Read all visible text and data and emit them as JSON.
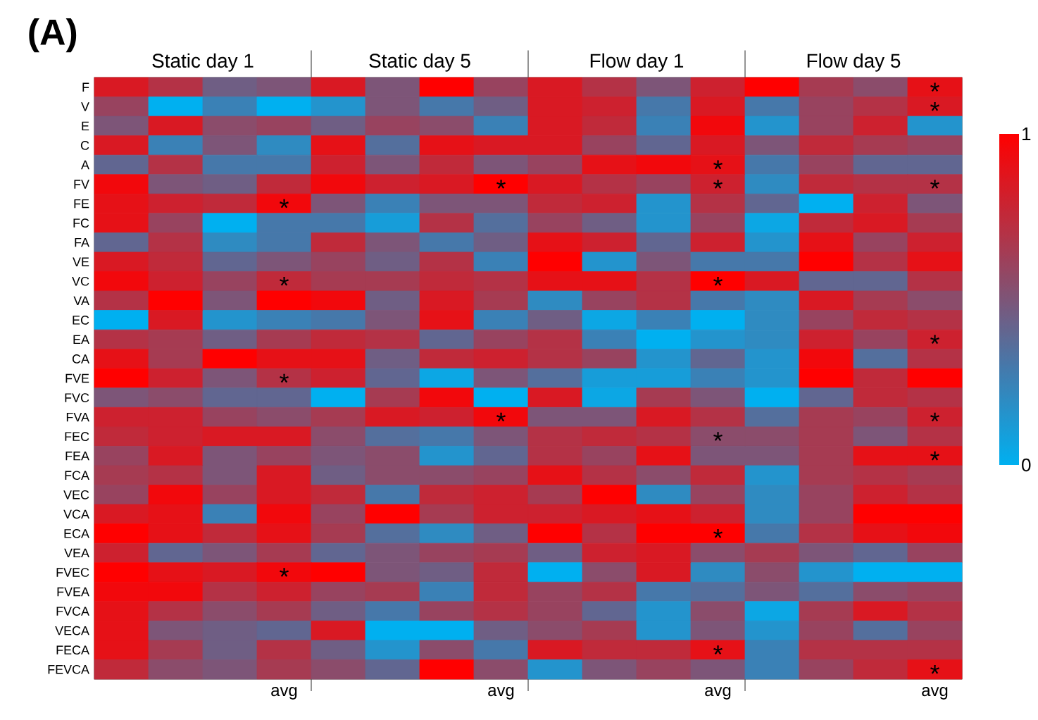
{
  "chart_data": {
    "type": "heatmap",
    "annotations": [
      "(A)",
      "Static day 1",
      "Static day 5",
      "Flow day 1",
      "Flow day 5"
    ],
    "categories": [
      null,
      null,
      null,
      "avg",
      null,
      null,
      null,
      "avg",
      null,
      null,
      null,
      "avg",
      null,
      null,
      null,
      "avg"
    ],
    "y_categories": [
      "F",
      "V",
      "E",
      "C",
      "A",
      "FV",
      "FE",
      "FC",
      "FA",
      "VE",
      "VC",
      "VA",
      "EC",
      "EA",
      "CA",
      "FVE",
      "FVC",
      "FVA",
      "FEC",
      "FEA",
      "FCA",
      "VEC",
      "VCA",
      "ECA",
      "VEA",
      "FVEC",
      "FVEA",
      "FVCA",
      "VECA",
      "FECA",
      "FEVCA"
    ],
    "cells": [
      [
        0.85,
        0.7,
        0.45,
        0.5,
        0.85,
        0.5,
        1.0,
        0.6,
        0.85,
        0.7,
        0.5,
        0.8,
        1.0,
        0.65,
        0.55,
        0.9
      ],
      [
        0.6,
        0.0,
        0.25,
        0.0,
        0.15,
        0.5,
        0.3,
        0.45,
        0.85,
        0.8,
        0.3,
        0.85,
        0.3,
        0.6,
        0.7,
        0.85
      ],
      [
        0.5,
        0.85,
        0.55,
        0.6,
        0.45,
        0.6,
        0.55,
        0.25,
        0.85,
        0.75,
        0.25,
        0.95,
        0.15,
        0.6,
        0.8,
        0.15
      ],
      [
        0.85,
        0.25,
        0.5,
        0.2,
        0.9,
        0.35,
        0.9,
        0.85,
        0.85,
        0.6,
        0.4,
        0.85,
        0.5,
        0.75,
        0.65,
        0.6
      ],
      [
        0.4,
        0.7,
        0.3,
        0.3,
        0.8,
        0.5,
        0.75,
        0.5,
        0.6,
        0.9,
        0.95,
        0.9,
        0.3,
        0.6,
        0.4,
        0.4
      ],
      [
        0.95,
        0.5,
        0.45,
        0.75,
        0.95,
        0.8,
        0.85,
        1.0,
        0.85,
        0.7,
        0.6,
        0.8,
        0.2,
        0.75,
        0.7,
        0.7
      ],
      [
        0.9,
        0.8,
        0.75,
        0.95,
        0.5,
        0.25,
        0.5,
        0.5,
        0.75,
        0.8,
        0.15,
        0.7,
        0.4,
        0.0,
        0.8,
        0.5
      ],
      [
        0.9,
        0.6,
        0.0,
        0.3,
        0.3,
        0.1,
        0.7,
        0.35,
        0.6,
        0.45,
        0.15,
        0.6,
        0.05,
        0.75,
        0.85,
        0.65
      ],
      [
        0.4,
        0.7,
        0.2,
        0.3,
        0.75,
        0.5,
        0.3,
        0.45,
        0.9,
        0.8,
        0.4,
        0.8,
        0.15,
        0.9,
        0.6,
        0.8
      ],
      [
        0.85,
        0.75,
        0.4,
        0.5,
        0.6,
        0.45,
        0.7,
        0.25,
        1.0,
        0.15,
        0.5,
        0.3,
        0.3,
        1.0,
        0.7,
        0.9
      ],
      [
        0.95,
        0.8,
        0.6,
        0.75,
        0.65,
        0.65,
        0.75,
        0.7,
        0.9,
        0.9,
        0.7,
        1.0,
        0.85,
        0.4,
        0.4,
        0.7
      ],
      [
        0.7,
        1.0,
        0.5,
        1.0,
        0.95,
        0.45,
        0.85,
        0.65,
        0.2,
        0.6,
        0.7,
        0.3,
        0.2,
        0.85,
        0.65,
        0.55
      ],
      [
        0.0,
        0.85,
        0.15,
        0.25,
        0.3,
        0.5,
        0.9,
        0.25,
        0.45,
        0.05,
        0.25,
        0.0,
        0.2,
        0.6,
        0.75,
        0.7
      ],
      [
        0.7,
        0.65,
        0.45,
        0.65,
        0.75,
        0.7,
        0.4,
        0.6,
        0.7,
        0.25,
        0.0,
        0.15,
        0.2,
        0.8,
        0.6,
        0.8
      ],
      [
        0.9,
        0.65,
        1.0,
        0.9,
        0.9,
        0.45,
        0.75,
        0.8,
        0.7,
        0.6,
        0.15,
        0.4,
        0.15,
        0.95,
        0.35,
        0.7
      ],
      [
        1.0,
        0.8,
        0.5,
        0.7,
        0.8,
        0.4,
        0.05,
        0.5,
        0.35,
        0.1,
        0.1,
        0.25,
        0.15,
        1.0,
        0.75,
        1.0
      ],
      [
        0.5,
        0.55,
        0.4,
        0.4,
        0.0,
        0.65,
        0.95,
        0.0,
        0.85,
        0.05,
        0.65,
        0.5,
        0.0,
        0.4,
        0.75,
        0.7
      ],
      [
        0.8,
        0.8,
        0.6,
        0.55,
        0.65,
        0.85,
        0.8,
        0.95,
        0.5,
        0.5,
        0.85,
        0.7,
        0.35,
        0.65,
        0.6,
        0.8
      ],
      [
        0.75,
        0.8,
        0.85,
        0.85,
        0.55,
        0.35,
        0.3,
        0.5,
        0.7,
        0.75,
        0.7,
        0.55,
        0.55,
        0.65,
        0.5,
        0.7
      ],
      [
        0.6,
        0.85,
        0.5,
        0.6,
        0.5,
        0.55,
        0.15,
        0.4,
        0.7,
        0.6,
        0.9,
        0.5,
        0.5,
        0.65,
        0.9,
        0.9
      ],
      [
        0.65,
        0.7,
        0.5,
        0.85,
        0.45,
        0.55,
        0.55,
        0.6,
        0.9,
        0.7,
        0.55,
        0.75,
        0.15,
        0.65,
        0.7,
        0.65
      ],
      [
        0.6,
        0.95,
        0.6,
        0.85,
        0.75,
        0.3,
        0.75,
        0.8,
        0.65,
        1.0,
        0.2,
        0.6,
        0.2,
        0.6,
        0.8,
        0.7
      ],
      [
        0.85,
        0.9,
        0.25,
        0.95,
        0.6,
        1.0,
        0.65,
        0.8,
        0.8,
        0.85,
        0.9,
        0.8,
        0.2,
        0.6,
        1.0,
        1.0
      ],
      [
        1.0,
        0.9,
        0.75,
        0.9,
        0.65,
        0.35,
        0.2,
        0.45,
        1.0,
        0.7,
        1.0,
        1.0,
        0.3,
        0.7,
        0.9,
        0.95
      ],
      [
        0.8,
        0.4,
        0.5,
        0.65,
        0.4,
        0.5,
        0.6,
        0.65,
        0.45,
        0.8,
        0.85,
        0.55,
        0.65,
        0.5,
        0.4,
        0.6
      ],
      [
        1.0,
        0.9,
        0.85,
        0.95,
        1.0,
        0.5,
        0.45,
        0.75,
        0.0,
        0.55,
        0.85,
        0.2,
        0.55,
        0.15,
        0.0,
        0.0
      ],
      [
        0.95,
        0.95,
        0.7,
        0.8,
        0.6,
        0.65,
        0.25,
        0.75,
        0.6,
        0.7,
        0.3,
        0.35,
        0.5,
        0.35,
        0.55,
        0.6
      ],
      [
        0.9,
        0.7,
        0.55,
        0.65,
        0.45,
        0.3,
        0.6,
        0.7,
        0.6,
        0.4,
        0.15,
        0.55,
        0.05,
        0.65,
        0.85,
        0.7
      ],
      [
        0.9,
        0.5,
        0.45,
        0.4,
        0.85,
        0.0,
        0.0,
        0.45,
        0.55,
        0.65,
        0.15,
        0.5,
        0.15,
        0.6,
        0.35,
        0.6
      ],
      [
        0.9,
        0.65,
        0.45,
        0.7,
        0.45,
        0.15,
        0.55,
        0.3,
        0.85,
        0.75,
        0.75,
        0.9,
        0.25,
        0.7,
        0.7,
        0.7
      ],
      [
        0.75,
        0.55,
        0.5,
        0.65,
        0.55,
        0.4,
        1.0,
        0.55,
        0.15,
        0.5,
        0.6,
        0.5,
        0.25,
        0.6,
        0.75,
        0.9
      ]
    ],
    "cell_labels": [
      [
        null,
        null,
        null,
        null,
        null,
        null,
        null,
        null,
        null,
        null,
        null,
        null,
        null,
        null,
        null,
        "*"
      ],
      [
        null,
        null,
        null,
        null,
        null,
        null,
        null,
        null,
        null,
        null,
        null,
        null,
        null,
        null,
        null,
        "*"
      ],
      [
        null,
        null,
        null,
        null,
        null,
        null,
        null,
        null,
        null,
        null,
        null,
        null,
        null,
        null,
        null,
        null
      ],
      [
        null,
        null,
        null,
        null,
        null,
        null,
        null,
        null,
        null,
        null,
        null,
        null,
        null,
        null,
        null,
        null
      ],
      [
        null,
        null,
        null,
        null,
        null,
        null,
        null,
        null,
        null,
        null,
        null,
        "*",
        null,
        null,
        null,
        null
      ],
      [
        null,
        null,
        null,
        null,
        null,
        null,
        null,
        "*",
        null,
        null,
        null,
        "*",
        null,
        null,
        null,
        "*"
      ],
      [
        null,
        null,
        null,
        "*",
        null,
        null,
        null,
        null,
        null,
        null,
        null,
        null,
        null,
        null,
        null,
        null
      ],
      [
        null,
        null,
        null,
        null,
        null,
        null,
        null,
        null,
        null,
        null,
        null,
        null,
        null,
        null,
        null,
        null
      ],
      [
        null,
        null,
        null,
        null,
        null,
        null,
        null,
        null,
        null,
        null,
        null,
        null,
        null,
        null,
        null,
        null
      ],
      [
        null,
        null,
        null,
        null,
        null,
        null,
        null,
        null,
        null,
        null,
        null,
        null,
        null,
        null,
        null,
        null
      ],
      [
        null,
        null,
        null,
        "*",
        null,
        null,
        null,
        null,
        null,
        null,
        null,
        "*",
        null,
        null,
        null,
        null
      ],
      [
        null,
        null,
        null,
        null,
        null,
        null,
        null,
        null,
        null,
        null,
        null,
        null,
        null,
        null,
        null,
        null
      ],
      [
        null,
        null,
        null,
        null,
        null,
        null,
        null,
        null,
        null,
        null,
        null,
        null,
        null,
        null,
        null,
        null
      ],
      [
        null,
        null,
        null,
        null,
        null,
        null,
        null,
        null,
        null,
        null,
        null,
        null,
        null,
        null,
        null,
        "*"
      ],
      [
        null,
        null,
        null,
        null,
        null,
        null,
        null,
        null,
        null,
        null,
        null,
        null,
        null,
        null,
        null,
        null
      ],
      [
        null,
        null,
        null,
        "*",
        null,
        null,
        null,
        null,
        null,
        null,
        null,
        null,
        null,
        null,
        null,
        null
      ],
      [
        null,
        null,
        null,
        null,
        null,
        null,
        null,
        null,
        null,
        null,
        null,
        null,
        null,
        null,
        null,
        null
      ],
      [
        null,
        null,
        null,
        null,
        null,
        null,
        null,
        "*",
        null,
        null,
        null,
        null,
        null,
        null,
        null,
        "*"
      ],
      [
        null,
        null,
        null,
        null,
        null,
        null,
        null,
        null,
        null,
        null,
        null,
        "*",
        null,
        null,
        null,
        null
      ],
      [
        null,
        null,
        null,
        null,
        null,
        null,
        null,
        null,
        null,
        null,
        null,
        null,
        null,
        null,
        null,
        "*"
      ],
      [
        null,
        null,
        null,
        null,
        null,
        null,
        null,
        null,
        null,
        null,
        null,
        null,
        null,
        null,
        null,
        null
      ],
      [
        null,
        null,
        null,
        null,
        null,
        null,
        null,
        null,
        null,
        null,
        null,
        null,
        null,
        null,
        null,
        null
      ],
      [
        null,
        null,
        null,
        null,
        null,
        null,
        null,
        null,
        null,
        null,
        null,
        null,
        null,
        null,
        null,
        null
      ],
      [
        null,
        null,
        null,
        null,
        null,
        null,
        null,
        null,
        null,
        null,
        null,
        "*",
        null,
        null,
        null,
        null
      ],
      [
        null,
        null,
        null,
        null,
        null,
        null,
        null,
        null,
        null,
        null,
        null,
        null,
        null,
        null,
        null,
        null
      ],
      [
        null,
        null,
        null,
        "*",
        null,
        null,
        null,
        null,
        null,
        null,
        null,
        null,
        null,
        null,
        null,
        null
      ],
      [
        null,
        null,
        null,
        null,
        null,
        null,
        null,
        null,
        null,
        null,
        null,
        null,
        null,
        null,
        null,
        null
      ],
      [
        null,
        null,
        null,
        null,
        null,
        null,
        null,
        null,
        null,
        null,
        null,
        null,
        null,
        null,
        null,
        null
      ],
      [
        null,
        null,
        null,
        null,
        null,
        null,
        null,
        null,
        null,
        null,
        null,
        null,
        null,
        null,
        null,
        null
      ],
      [
        null,
        null,
        null,
        null,
        null,
        null,
        null,
        null,
        null,
        null,
        null,
        "*",
        null,
        null,
        null,
        null
      ],
      [
        null,
        null,
        null,
        null,
        null,
        null,
        null,
        null,
        null,
        null,
        null,
        null,
        null,
        null,
        null,
        "*"
      ]
    ],
    "clim": [
      0,
      1
    ],
    "cticks": [
      0,
      1
    ]
  }
}
